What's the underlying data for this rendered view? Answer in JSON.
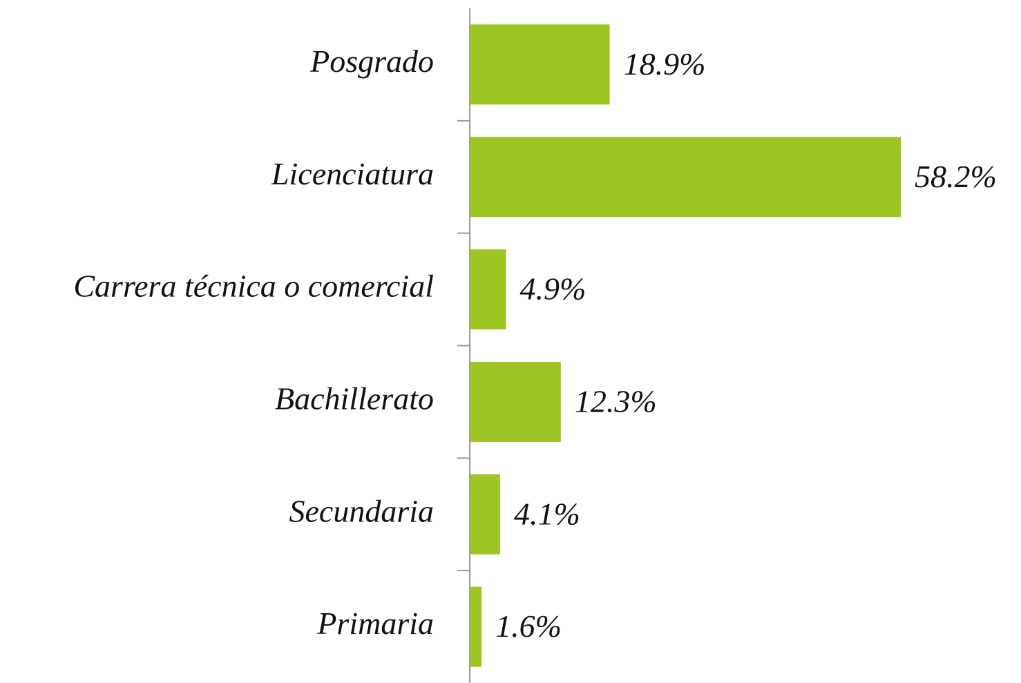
{
  "chart_data": {
    "type": "hbar",
    "categories": [
      "Posgrado",
      "Licenciatura",
      "Carrera técnica o comercial",
      "Bachillerato",
      "Secundaria",
      "Primaria"
    ],
    "values": [
      18.9,
      58.2,
      4.9,
      12.3,
      4.1,
      1.6
    ],
    "value_labels": [
      "18.9%",
      "58.2%",
      "4.9%",
      "12.3%",
      "4.1%",
      "1.6%"
    ],
    "color": "#9bc623"
  }
}
